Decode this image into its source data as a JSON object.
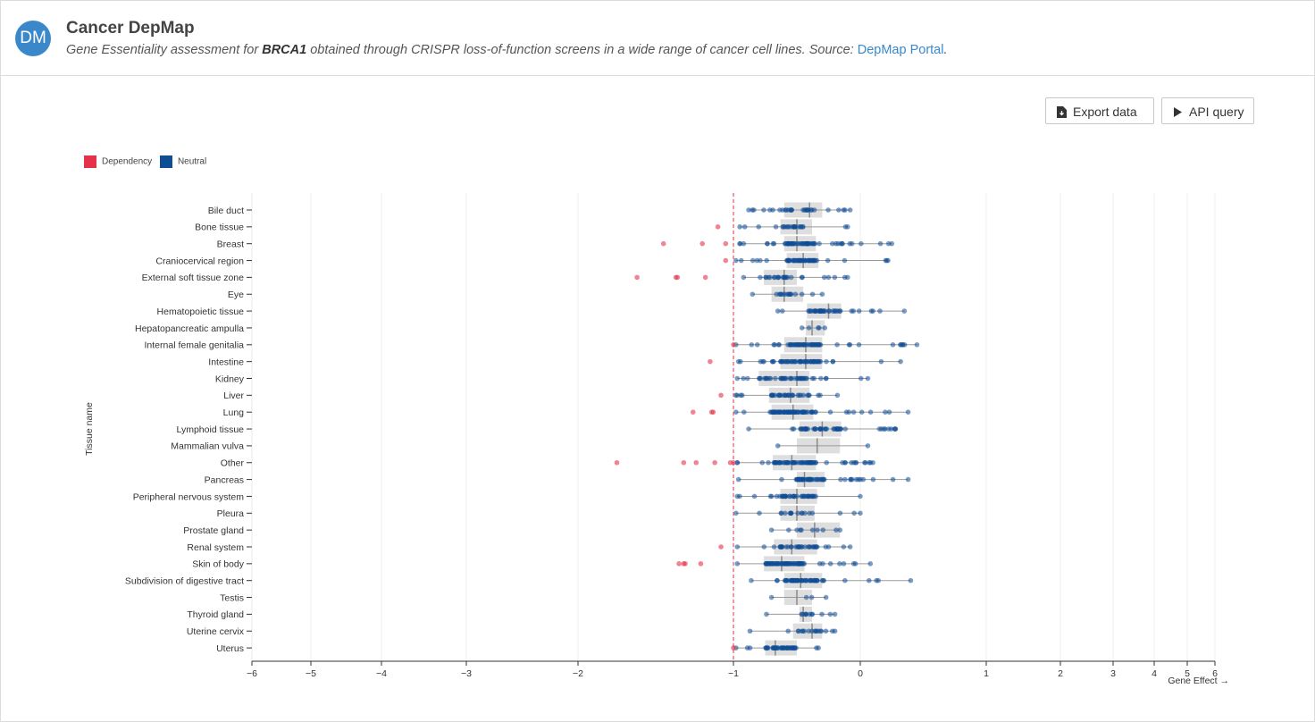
{
  "header": {
    "avatar_text": "DM",
    "title": "Cancer DepMap",
    "subtitle_prefix": "Gene Essentiality assessment for ",
    "gene": "BRCA1",
    "subtitle_middle": " obtained through CRISPR loss-of-function screens in a wide range of cancer cell lines. Source: ",
    "source_link": "DepMap Portal",
    "subtitle_suffix": "."
  },
  "toolbar": {
    "export_label": "Export data",
    "api_label": "API query"
  },
  "legend": [
    {
      "label": "Dependency",
      "color": "#e5324b"
    },
    {
      "label": "Neutral",
      "color": "#0f4d95"
    }
  ],
  "chart_data": {
    "type": "scatter",
    "ylabel": "Tissue name",
    "xlabel": "Gene Effect →",
    "x_ticks": [
      -6,
      -5,
      -4,
      -3,
      -2,
      -1,
      0,
      1,
      2,
      3,
      4,
      5,
      6
    ],
    "threshold": -1,
    "colors": {
      "dependency": "#e5324b",
      "neutral": "#0f4d95",
      "box": "#dedede",
      "threshold": "#e5324b"
    },
    "categories": [
      {
        "name": "Bile duct",
        "min": -0.88,
        "q1": -0.6,
        "median": -0.4,
        "q3": -0.3,
        "max": -0.08,
        "dependency": [],
        "n_neutral": 30
      },
      {
        "name": "Bone tissue",
        "min": -0.95,
        "q1": -0.63,
        "median": -0.5,
        "q3": -0.38,
        "max": -0.1,
        "dependency": [
          -1.1
        ],
        "n_neutral": 24
      },
      {
        "name": "Breast",
        "min": -0.95,
        "q1": -0.6,
        "median": -0.5,
        "q3": -0.35,
        "max": 0.25,
        "dependency": [
          -1.45,
          -1.2,
          -1.05
        ],
        "n_neutral": 60
      },
      {
        "name": "Craniocervical region",
        "min": -0.98,
        "q1": -0.58,
        "median": -0.45,
        "q3": -0.33,
        "max": 0.22,
        "dependency": [
          -1.05
        ],
        "n_neutral": 52
      },
      {
        "name": "External soft tissue zone",
        "min": -0.92,
        "q1": -0.76,
        "median": -0.6,
        "q3": -0.5,
        "max": -0.1,
        "dependency": [
          -1.62,
          -1.37,
          -1.36,
          -1.18
        ],
        "n_neutral": 26
      },
      {
        "name": "Eye",
        "min": -0.85,
        "q1": -0.7,
        "median": -0.6,
        "q3": -0.45,
        "max": -0.3,
        "dependency": [],
        "n_neutral": 16
      },
      {
        "name": "Hematopoietic tissue",
        "min": -0.65,
        "q1": -0.42,
        "median": -0.25,
        "q3": -0.15,
        "max": 0.35,
        "dependency": [],
        "n_neutral": 40
      },
      {
        "name": "Hepatopancreatic ampulla",
        "min": -0.46,
        "q1": -0.43,
        "median": -0.38,
        "q3": -0.28,
        "max": -0.28,
        "dependency": [],
        "n_neutral": 5
      },
      {
        "name": "Internal female genitalia",
        "min": -0.98,
        "q1": -0.6,
        "median": -0.43,
        "q3": -0.3,
        "max": 0.45,
        "dependency": [
          -1.0
        ],
        "n_neutral": 58
      },
      {
        "name": "Intestine",
        "min": -0.96,
        "q1": -0.63,
        "median": -0.43,
        "q3": -0.3,
        "max": 0.32,
        "dependency": [
          -1.15
        ],
        "n_neutral": 56
      },
      {
        "name": "Kidney",
        "min": -0.97,
        "q1": -0.8,
        "median": -0.5,
        "q3": -0.4,
        "max": 0.06,
        "dependency": [],
        "n_neutral": 44
      },
      {
        "name": "Liver",
        "min": -0.98,
        "q1": -0.72,
        "median": -0.55,
        "q3": -0.4,
        "max": -0.18,
        "dependency": [
          -1.08
        ],
        "n_neutral": 34
      },
      {
        "name": "Lung",
        "min": -0.98,
        "q1": -0.7,
        "median": -0.53,
        "q3": -0.37,
        "max": 0.38,
        "dependency": [
          -1.26,
          -1.14,
          -1.13
        ],
        "n_neutral": 70
      },
      {
        "name": "Lymphoid tissue",
        "min": -0.88,
        "q1": -0.48,
        "median": -0.3,
        "q3": -0.15,
        "max": 0.28,
        "dependency": [],
        "n_neutral": 48
      },
      {
        "name": "Mammalian vulva",
        "min": -0.65,
        "q1": -0.5,
        "median": -0.34,
        "q3": -0.16,
        "max": 0.06,
        "dependency": [],
        "n_neutral": 2
      },
      {
        "name": "Other",
        "min": -0.97,
        "q1": -0.69,
        "median": -0.54,
        "q3": -0.35,
        "max": 0.1,
        "dependency": [
          -1.75,
          -1.32,
          -1.24,
          -1.12,
          -1.02,
          -1.0
        ],
        "n_neutral": 70
      },
      {
        "name": "Pancreas",
        "min": -0.96,
        "q1": -0.5,
        "median": -0.44,
        "q3": -0.28,
        "max": 0.38,
        "dependency": [],
        "n_neutral": 52
      },
      {
        "name": "Peripheral nervous system",
        "min": -0.97,
        "q1": -0.63,
        "median": -0.5,
        "q3": -0.34,
        "max": 0.0,
        "dependency": [],
        "n_neutral": 38
      },
      {
        "name": "Pleura",
        "min": -0.98,
        "q1": -0.63,
        "median": -0.5,
        "q3": -0.36,
        "max": 0.0,
        "dependency": [],
        "n_neutral": 18
      },
      {
        "name": "Prostate gland",
        "min": -0.7,
        "q1": -0.5,
        "median": -0.36,
        "q3": -0.16,
        "max": -0.16,
        "dependency": [],
        "n_neutral": 10
      },
      {
        "name": "Renal system",
        "min": -0.97,
        "q1": -0.68,
        "median": -0.54,
        "q3": -0.34,
        "max": -0.08,
        "dependency": [
          -1.08
        ],
        "n_neutral": 36
      },
      {
        "name": "Skin of body",
        "min": -0.97,
        "q1": -0.76,
        "median": -0.62,
        "q3": -0.44,
        "max": 0.08,
        "dependency": [
          -1.35,
          -1.32,
          -1.31,
          -1.21
        ],
        "n_neutral": 66
      },
      {
        "name": "Subdivision of digestive tract",
        "min": -0.86,
        "q1": -0.6,
        "median": -0.47,
        "q3": -0.3,
        "max": 0.4,
        "dependency": [],
        "n_neutral": 52
      },
      {
        "name": "Testis",
        "min": -0.7,
        "q1": -0.6,
        "median": -0.5,
        "q3": -0.38,
        "max": -0.27,
        "dependency": [],
        "n_neutral": 4
      },
      {
        "name": "Thyroid gland",
        "min": -0.74,
        "q1": -0.48,
        "median": -0.45,
        "q3": -0.38,
        "max": -0.2,
        "dependency": [],
        "n_neutral": 12
      },
      {
        "name": "Uterine cervix",
        "min": -0.87,
        "q1": -0.53,
        "median": -0.38,
        "q3": -0.3,
        "max": -0.2,
        "dependency": [],
        "n_neutral": 18
      },
      {
        "name": "Uterus",
        "min": -0.98,
        "q1": -0.75,
        "median": -0.67,
        "q3": -0.5,
        "max": -0.33,
        "dependency": [
          -1.0
        ],
        "n_neutral": 40
      }
    ]
  }
}
